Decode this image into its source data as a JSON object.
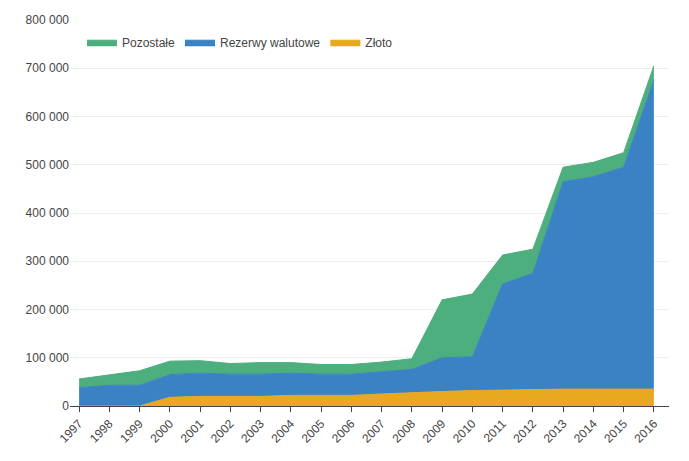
{
  "chart_data": {
    "type": "area",
    "stacked": true,
    "x": [
      1997,
      1998,
      1999,
      2000,
      2001,
      2002,
      2003,
      2004,
      2005,
      2006,
      2007,
      2008,
      2009,
      2010,
      2011,
      2012,
      2013,
      2014,
      2015,
      2016
    ],
    "series": [
      {
        "name": "Złoto",
        "color": "#E8A820",
        "values": [
          0,
          0,
          0,
          18000,
          20000,
          20000,
          20000,
          22000,
          22000,
          22000,
          25000,
          28000,
          30000,
          32000,
          33000,
          35000,
          35000,
          35000,
          35000,
          35000
        ]
      },
      {
        "name": "Rezerwy walutowe",
        "color": "#3B82C4",
        "values": [
          38000,
          43000,
          43000,
          47000,
          48000,
          46000,
          46000,
          46000,
          44000,
          44000,
          46000,
          48000,
          70000,
          70000,
          220000,
          240000,
          430000,
          440000,
          460000,
          640000
        ]
      },
      {
        "name": "Pozostałe",
        "color": "#4CAF7D",
        "values": [
          18000,
          22000,
          30000,
          28000,
          26000,
          22000,
          24000,
          22000,
          20000,
          20000,
          20000,
          22000,
          120000,
          130000,
          60000,
          50000,
          30000,
          30000,
          30000,
          30000
        ]
      }
    ],
    "xlim": [
      1996.7,
      2016.5
    ],
    "xticks": [
      1997,
      1998,
      1999,
      2000,
      2001,
      2002,
      2003,
      2004,
      2005,
      2006,
      2007,
      2008,
      2009,
      2010,
      2011,
      2012,
      2013,
      2014,
      2015,
      2016
    ],
    "ylim": [
      0,
      800000
    ],
    "yticks": [
      0,
      {
        "value": 100000,
        "label": "100 000"
      },
      {
        "value": 200000,
        "label": "200 000"
      },
      {
        "value": 300000,
        "label": "300 000"
      },
      {
        "value": 400000,
        "label": "400 000"
      },
      {
        "value": 500000,
        "label": "500 000"
      },
      {
        "value": 600000,
        "label": "600 000"
      },
      {
        "value": 700000,
        "label": "700 000"
      },
      {
        "value": 800000,
        "label": "800 000"
      }
    ],
    "grid": true,
    "legend": "upper left"
  }
}
